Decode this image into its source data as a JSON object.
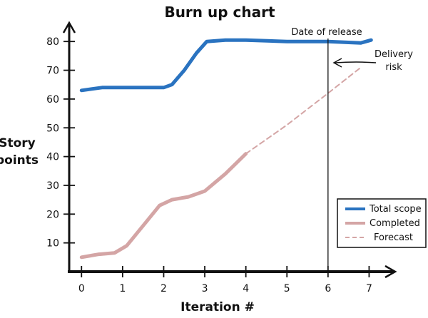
{
  "chart_data": {
    "type": "line",
    "title": "Burn up chart",
    "xlabel": "Iteration #",
    "ylabel_lines": [
      "Story",
      "points"
    ],
    "xlim": [
      -0.3,
      7.6
    ],
    "ylim": [
      0,
      86
    ],
    "x_ticks": [
      0,
      1,
      2,
      3,
      4,
      5,
      6,
      7
    ],
    "y_ticks": [
      10,
      20,
      30,
      40,
      50,
      60,
      70,
      80
    ],
    "series": [
      {
        "name": "Total scope",
        "color": "#2a73c0",
        "style": "solid",
        "points": [
          [
            0,
            63
          ],
          [
            0.5,
            64
          ],
          [
            1,
            64
          ],
          [
            1.5,
            64
          ],
          [
            2,
            64
          ],
          [
            2.2,
            65
          ],
          [
            2.5,
            70
          ],
          [
            2.8,
            76
          ],
          [
            3.05,
            80
          ],
          [
            3.5,
            80.5
          ],
          [
            4,
            80.5
          ],
          [
            5,
            80
          ],
          [
            6,
            80
          ],
          [
            6.8,
            79.5
          ],
          [
            7.05,
            80.5
          ]
        ]
      },
      {
        "name": "Completed",
        "color": "#d4a5a5",
        "style": "solid",
        "points": [
          [
            0,
            5
          ],
          [
            0.4,
            6
          ],
          [
            0.8,
            6.5
          ],
          [
            1.1,
            9
          ],
          [
            1.5,
            16
          ],
          [
            1.9,
            23
          ],
          [
            2.2,
            25
          ],
          [
            2.6,
            26
          ],
          [
            3.0,
            28
          ],
          [
            3.5,
            34
          ],
          [
            4.0,
            41
          ]
        ]
      },
      {
        "name": "Forecast",
        "color": "#d4a5a5",
        "style": "dashed",
        "points": [
          [
            4.0,
            41
          ],
          [
            5,
            51
          ],
          [
            6,
            62
          ],
          [
            6.8,
            71
          ]
        ]
      }
    ],
    "annotations": [
      {
        "text": "Date of release",
        "x": 6
      },
      {
        "text_lines": [
          "Delivery",
          "risk"
        ]
      }
    ]
  }
}
